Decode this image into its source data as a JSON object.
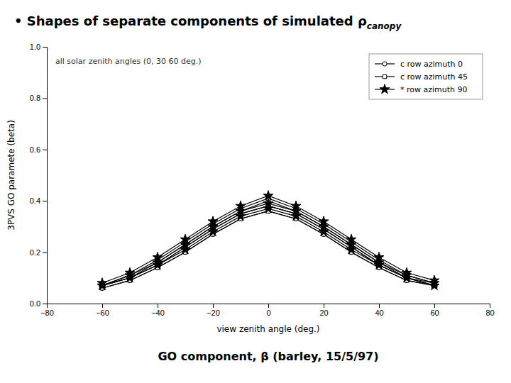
{
  "chart_data": {
    "type": "line",
    "title": "• Shapes of separate components of simulated ρ",
    "title_subscript": "canopy",
    "subtitle": "GO component, β (barley, 15/5/97)",
    "x_label": "view zenith angle (deg.)",
    "y_label": "3PVS GO paramete  (beta)",
    "annotations": [
      "all solar zenith angles (0, 30  60 deg.)"
    ],
    "x": [
      -60,
      -50,
      -40,
      -30,
      -20,
      -10,
      0,
      10,
      20,
      30,
      40,
      50,
      60
    ],
    "xlim": [
      -80,
      80
    ],
    "ylim": [
      0.0,
      1.0
    ],
    "xticks": [
      {
        "value": -80,
        "label": "−80"
      },
      {
        "value": -60,
        "label": "−60"
      },
      {
        "value": -40,
        "label": "−40"
      },
      {
        "value": -20,
        "label": "−20"
      },
      0,
      20,
      40,
      60,
      80
    ],
    "yticks": [
      {
        "value": 0.0,
        "label": "0.0"
      },
      0.2,
      0.4,
      0.6,
      0.8,
      {
        "value": 1.0,
        "label": "1.0"
      }
    ],
    "grid": false,
    "legend": "upper right",
    "color": "#000000",
    "series": [
      {
        "name": "c row azimuth 0",
        "marker": "circle",
        "values": [
          0.06,
          0.09,
          0.14,
          0.2,
          0.27,
          0.33,
          0.36,
          0.33,
          0.27,
          0.2,
          0.14,
          0.09,
          0.07
        ]
      },
      {
        "name": "c row azimuth 0",
        "marker": "circle",
        "values": [
          0.07,
          0.1,
          0.15,
          0.22,
          0.29,
          0.35,
          0.38,
          0.35,
          0.29,
          0.22,
          0.15,
          0.1,
          0.07
        ]
      },
      {
        "name": "c row azimuth 0",
        "marker": "circle",
        "values": [
          0.07,
          0.1,
          0.16,
          0.23,
          0.3,
          0.36,
          0.4,
          0.36,
          0.3,
          0.23,
          0.16,
          0.1,
          0.08
        ]
      },
      {
        "name": "c row azimuth 45",
        "marker": "square",
        "values": [
          0.06,
          0.09,
          0.14,
          0.2,
          0.27,
          0.33,
          0.36,
          0.33,
          0.27,
          0.2,
          0.14,
          0.09,
          0.07
        ]
      },
      {
        "name": "c row azimuth 45",
        "marker": "square",
        "values": [
          0.07,
          0.1,
          0.15,
          0.22,
          0.29,
          0.35,
          0.38,
          0.35,
          0.29,
          0.22,
          0.15,
          0.1,
          0.07
        ]
      },
      {
        "name": "c row azimuth 45",
        "marker": "square",
        "values": [
          0.07,
          0.11,
          0.17,
          0.24,
          0.31,
          0.37,
          0.41,
          0.37,
          0.31,
          0.24,
          0.17,
          0.11,
          0.08
        ]
      },
      {
        "name": "* row azimuth 90",
        "marker": "star",
        "values": [
          0.07,
          0.1,
          0.15,
          0.21,
          0.28,
          0.34,
          0.37,
          0.34,
          0.28,
          0.21,
          0.15,
          0.1,
          0.07
        ]
      },
      {
        "name": "* row azimuth 90",
        "marker": "star",
        "values": [
          0.07,
          0.11,
          0.16,
          0.23,
          0.3,
          0.36,
          0.39,
          0.36,
          0.3,
          0.23,
          0.16,
          0.11,
          0.08
        ]
      },
      {
        "name": "* row azimuth 90",
        "marker": "star",
        "values": [
          0.08,
          0.12,
          0.18,
          0.25,
          0.32,
          0.38,
          0.42,
          0.38,
          0.32,
          0.25,
          0.18,
          0.12,
          0.09
        ]
      }
    ]
  }
}
